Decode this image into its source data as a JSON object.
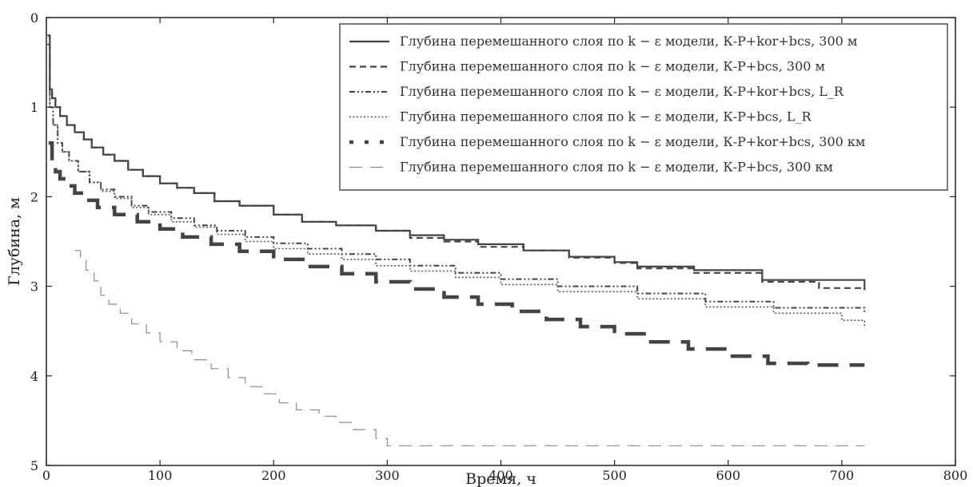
{
  "chart_data": {
    "type": "line",
    "xlabel": "Время, ч",
    "ylabel": "Глубина, м",
    "xlim": [
      0,
      800
    ],
    "ylim": [
      5,
      0
    ],
    "y_inverted": true,
    "xticks": [
      0,
      100,
      200,
      300,
      400,
      500,
      600,
      700,
      800
    ],
    "yticks": [
      0,
      1,
      2,
      3,
      4,
      5
    ],
    "grid": false,
    "legend_position": "top-right",
    "series": [
      {
        "name": "Глубина перемешанного слоя по k − ε модели, К-Р+kor+bcs, 300 м",
        "style": "solid",
        "color": "#444444",
        "x": [
          1,
          3,
          5,
          8,
          12,
          18,
          25,
          33,
          40,
          50,
          60,
          72,
          85,
          100,
          115,
          130,
          148,
          170,
          200,
          225,
          255,
          290,
          320,
          350,
          380,
          420,
          460,
          500,
          520,
          570,
          630,
          720
        ],
        "y": [
          0.2,
          0.8,
          0.9,
          1.0,
          1.1,
          1.2,
          1.28,
          1.36,
          1.45,
          1.53,
          1.6,
          1.7,
          1.77,
          1.85,
          1.9,
          1.96,
          2.05,
          2.1,
          2.2,
          2.28,
          2.32,
          2.38,
          2.43,
          2.48,
          2.53,
          2.6,
          2.67,
          2.73,
          2.78,
          2.82,
          2.93,
          3.04
        ]
      },
      {
        "name": "Глубина перемешанного слоя по k − ε модели, К-Р+bcs, 300 м",
        "style": "dashed",
        "color": "#444444",
        "x": [
          1,
          3,
          5,
          8,
          12,
          18,
          25,
          33,
          40,
          50,
          60,
          72,
          85,
          100,
          115,
          130,
          148,
          170,
          200,
          225,
          255,
          290,
          320,
          350,
          380,
          420,
          460,
          500,
          520,
          570,
          630,
          680,
          720
        ],
        "y": [
          0.2,
          0.8,
          0.9,
          1.0,
          1.1,
          1.2,
          1.28,
          1.36,
          1.45,
          1.53,
          1.6,
          1.7,
          1.77,
          1.85,
          1.9,
          1.96,
          2.05,
          2.1,
          2.2,
          2.28,
          2.32,
          2.38,
          2.46,
          2.5,
          2.56,
          2.6,
          2.68,
          2.74,
          2.8,
          2.85,
          2.95,
          3.02,
          3.04
        ]
      },
      {
        "name": "Глубина перемешанного слоя по k − ε модели, К-Р+kor+bcs, L_R",
        "style": "dashdot",
        "color": "#444444",
        "x": [
          1,
          3,
          6,
          10,
          14,
          20,
          28,
          38,
          48,
          60,
          75,
          90,
          110,
          130,
          150,
          175,
          200,
          230,
          260,
          290,
          320,
          360,
          400,
          450,
          520,
          580,
          640,
          720
        ],
        "y": [
          0.3,
          1.0,
          1.2,
          1.4,
          1.5,
          1.6,
          1.72,
          1.84,
          1.92,
          2.0,
          2.1,
          2.17,
          2.24,
          2.32,
          2.38,
          2.45,
          2.52,
          2.58,
          2.64,
          2.7,
          2.77,
          2.85,
          2.92,
          3.0,
          3.08,
          3.17,
          3.24,
          3.3
        ]
      },
      {
        "name": "Глубина перемешанного слоя по k − ε модели, К-Р+bcs, L_R",
        "style": "dotted",
        "color": "#555555",
        "x": [
          1,
          3,
          6,
          10,
          14,
          20,
          28,
          38,
          48,
          60,
          75,
          90,
          110,
          130,
          150,
          175,
          200,
          230,
          260,
          290,
          320,
          360,
          400,
          450,
          520,
          580,
          640,
          700,
          720
        ],
        "y": [
          0.3,
          1.0,
          1.2,
          1.4,
          1.5,
          1.6,
          1.72,
          1.84,
          1.94,
          2.02,
          2.12,
          2.2,
          2.28,
          2.34,
          2.42,
          2.5,
          2.58,
          2.64,
          2.7,
          2.77,
          2.83,
          2.9,
          2.98,
          3.06,
          3.14,
          3.23,
          3.3,
          3.38,
          3.47
        ]
      },
      {
        "name": "Глубина перемешанного слоя по k − ε модели, К-Р+kor+bcs, 300 км",
        "style": "thick-dashed",
        "color": "#444444",
        "x": [
          2,
          5,
          8,
          12,
          18,
          25,
          35,
          45,
          60,
          80,
          100,
          120,
          145,
          170,
          200,
          230,
          260,
          290,
          320,
          350,
          380,
          410,
          440,
          470,
          500,
          530,
          565,
          600,
          635,
          670,
          720
        ],
        "y": [
          1.4,
          1.62,
          1.72,
          1.8,
          1.88,
          1.96,
          2.04,
          2.12,
          2.2,
          2.28,
          2.36,
          2.45,
          2.53,
          2.61,
          2.7,
          2.78,
          2.86,
          2.95,
          3.03,
          3.12,
          3.2,
          3.28,
          3.37,
          3.45,
          3.53,
          3.62,
          3.7,
          3.78,
          3.86,
          3.88,
          3.88
        ]
      },
      {
        "name": "Глубина перемешанного слоя по k − ε модели, К-Р+bcs, 300 км",
        "style": "sparse-dash",
        "color": "#8a8a8a",
        "x": [
          25,
          30,
          35,
          42,
          48,
          55,
          65,
          75,
          88,
          100,
          115,
          128,
          145,
          160,
          175,
          190,
          205,
          220,
          240,
          255,
          270,
          290,
          300,
          720
        ],
        "y": [
          2.6,
          2.7,
          2.82,
          2.94,
          3.1,
          3.2,
          3.3,
          3.42,
          3.52,
          3.62,
          3.72,
          3.82,
          3.92,
          4.02,
          4.12,
          4.2,
          4.3,
          4.38,
          4.45,
          4.52,
          4.6,
          4.7,
          4.78,
          4.78
        ]
      }
    ]
  }
}
